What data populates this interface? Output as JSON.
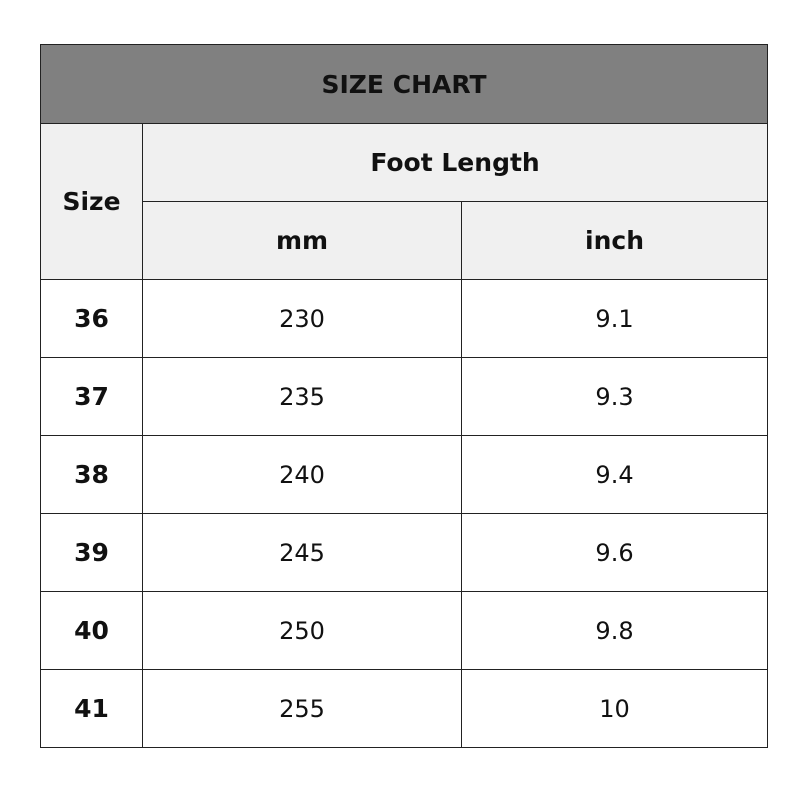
{
  "title": "SIZE CHART",
  "headers": {
    "size": "Size",
    "group": "Foot Length",
    "mm": "mm",
    "inch": "inch"
  },
  "rows": [
    {
      "size": "36",
      "mm": "230",
      "inch": "9.1"
    },
    {
      "size": "37",
      "mm": "235",
      "inch": "9.3"
    },
    {
      "size": "38",
      "mm": "240",
      "inch": "9.4"
    },
    {
      "size": "39",
      "mm": "245",
      "inch": "9.6"
    },
    {
      "size": "40",
      "mm": "250",
      "inch": "9.8"
    },
    {
      "size": "41",
      "mm": "255",
      "inch": "10"
    }
  ]
}
